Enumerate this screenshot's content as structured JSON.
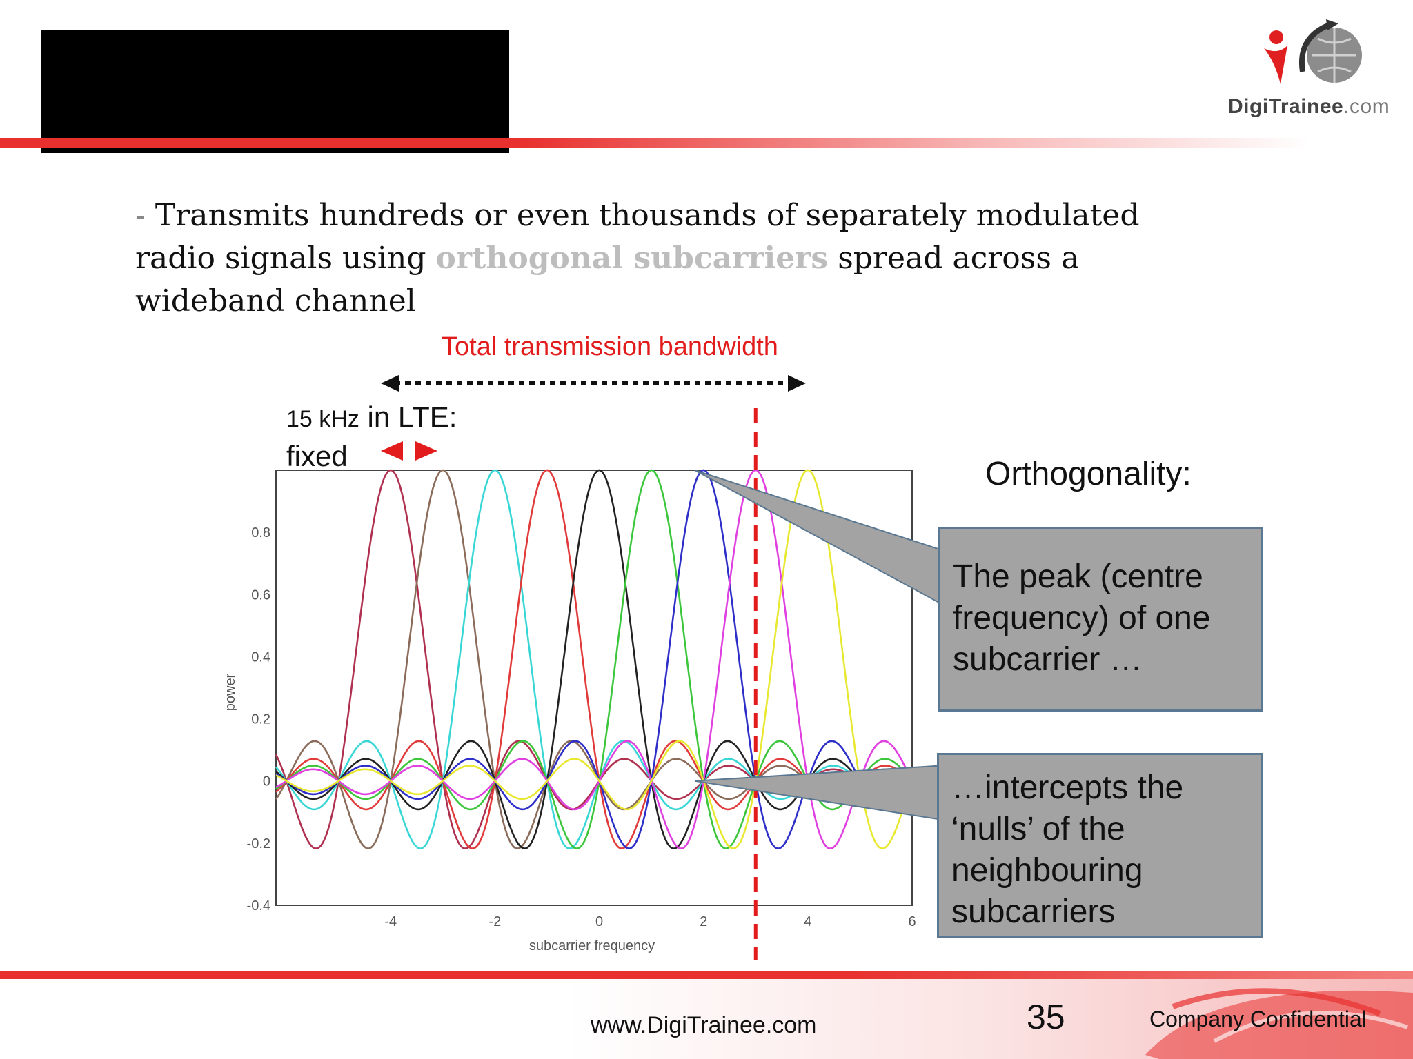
{
  "logo": {
    "name": "DigiTrainee",
    "suffix": ".com",
    "accent": "#e8312f"
  },
  "body": {
    "dash": "- ",
    "text_1": "Transmits hundreds or even thousands of separately modulated radio signals using ",
    "highlight": "orthogonal subcarriers",
    "text_2": " spread across a wideband channel"
  },
  "annotations": {
    "bandwidth_label": "Total transmission bandwidth",
    "spacing_value": "15 kHz",
    "spacing_rest": " in LTE:",
    "spacing_fixed": "fixed",
    "ortho_title": "Orthogonality:",
    "callout_1": "The peak (centre frequency) of one subcarrier …",
    "callout_2": "…intercepts the ‘nulls’ of the neighbouring subcarriers"
  },
  "footer": {
    "url": "www.DigiTrainee.com",
    "page": "35",
    "confidential": "Company Confidential"
  },
  "chart_data": {
    "type": "line",
    "xlabel": "subcarrier frequency",
    "ylabel": "power",
    "xlim": [
      -6.2,
      6
    ],
    "ylim": [
      -0.4,
      1.0
    ],
    "xticks": [
      -4,
      -2,
      0,
      2,
      4,
      6
    ],
    "yticks": [
      -0.4,
      -0.2,
      0,
      0.2,
      0.4,
      0.6,
      0.8
    ],
    "grid": true,
    "function": "sinc",
    "highlight_x": 3,
    "series": [
      {
        "center": -4,
        "color": "#b03050"
      },
      {
        "center": -3,
        "color": "#8b6b5a"
      },
      {
        "center": -2,
        "color": "#39d6d6"
      },
      {
        "center": -1,
        "color": "#e03a3a"
      },
      {
        "center": 0,
        "color": "#222222"
      },
      {
        "center": 1,
        "color": "#3cc63c"
      },
      {
        "center": 2,
        "color": "#2e2ec8"
      },
      {
        "center": 3,
        "color": "#e040e0"
      },
      {
        "center": 4,
        "color": "#e8e830"
      }
    ]
  }
}
